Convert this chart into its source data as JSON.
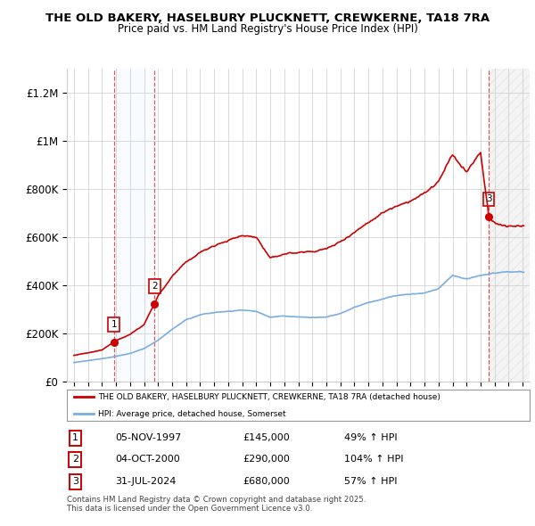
{
  "title": "THE OLD BAKERY, HASELBURY PLUCKNETT, CREWKERNE, TA18 7RA",
  "subtitle": "Price paid vs. HM Land Registry's House Price Index (HPI)",
  "xlim": [
    1994.5,
    2027.5
  ],
  "ylim": [
    0,
    1300000
  ],
  "yticks": [
    0,
    200000,
    400000,
    600000,
    800000,
    1000000,
    1200000
  ],
  "ytick_labels": [
    "£0",
    "£200K",
    "£400K",
    "£600K",
    "£800K",
    "£1M",
    "£1.2M"
  ],
  "xticks": [
    1995,
    1996,
    1997,
    1998,
    1999,
    2000,
    2001,
    2002,
    2003,
    2004,
    2005,
    2006,
    2007,
    2008,
    2009,
    2010,
    2011,
    2012,
    2013,
    2014,
    2015,
    2016,
    2017,
    2018,
    2019,
    2020,
    2021,
    2022,
    2023,
    2024,
    2025,
    2026,
    2027
  ],
  "sale1_date": 1997.85,
  "sale1_price": 145000,
  "sale2_date": 2000.75,
  "sale2_price": 290000,
  "sale3_date": 2024.58,
  "sale3_price": 680000,
  "red_line_color": "#cc0000",
  "blue_line_color": "#7aade0",
  "shade1_color": "#ddeeff",
  "transaction_table": [
    {
      "num": "1",
      "date": "05-NOV-1997",
      "price": "£145,000",
      "hpi": "49% ↑ HPI"
    },
    {
      "num": "2",
      "date": "04-OCT-2000",
      "price": "£290,000",
      "hpi": "104% ↑ HPI"
    },
    {
      "num": "3",
      "date": "31-JUL-2024",
      "price": "£680,000",
      "hpi": "57% ↑ HPI"
    }
  ],
  "legend_red": "THE OLD BAKERY, HASELBURY PLUCKNETT, CREWKERNE, TA18 7RA (detached house)",
  "legend_blue": "HPI: Average price, detached house, Somerset",
  "footer": "Contains HM Land Registry data © Crown copyright and database right 2025.\nThis data is licensed under the Open Government Licence v3.0.",
  "background_color": "#ffffff",
  "grid_color": "#cccccc"
}
